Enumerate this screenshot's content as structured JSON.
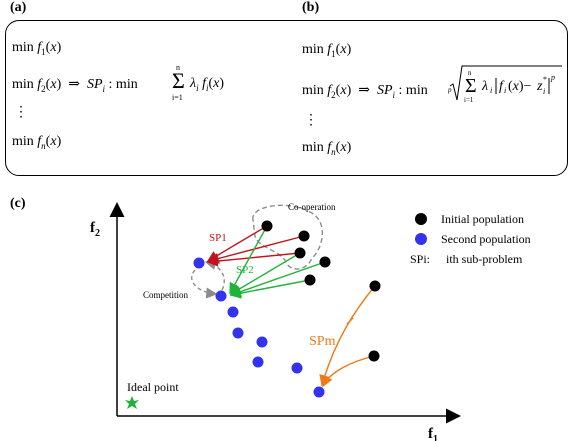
{
  "panels": {
    "a_label": "(a)",
    "b_label": "(b)",
    "c_label": "(c)"
  },
  "panel_a": {
    "line1": "min f1(x)",
    "line2": "min f2(x) ⇒ SPi : min Σ λi fi(x)",
    "sum_top": "n",
    "sum_bottom": "i=1",
    "line3": "⋮",
    "line4": "min fn(x)"
  },
  "panel_b": {
    "line1": "min f1(x)",
    "line2": "min f2(x) ⇒ SPi : min (Σ λi |fi(x) − zi*|^p)^(1/p)",
    "root_index": "p",
    "sum_top": "n",
    "sum_bottom": "i=1",
    "line3": "⋮",
    "line4": "min fn(x)"
  },
  "diagram": {
    "y_axis_label": "f2",
    "x_axis_label": "f1",
    "cooperation_label": "Co-operation",
    "competition_label": "Competition",
    "sp1_label": "SP1",
    "sp2_label": "SP2",
    "spm_label": "SPm",
    "ideal_point_label": "Ideal point",
    "legend": {
      "initial": "Initial population",
      "second": "Second population",
      "sp_def_prefix": "SPi:",
      "sp_def_text": "ith sub-problem"
    },
    "colors": {
      "initial": "#000000",
      "second": "#3333ee",
      "sp1": "#c0141e",
      "sp2": "#1fb33a",
      "spm": "#ee7a1a",
      "ideal": "#1fb33a",
      "dashed": "#8c8c8c"
    }
  }
}
